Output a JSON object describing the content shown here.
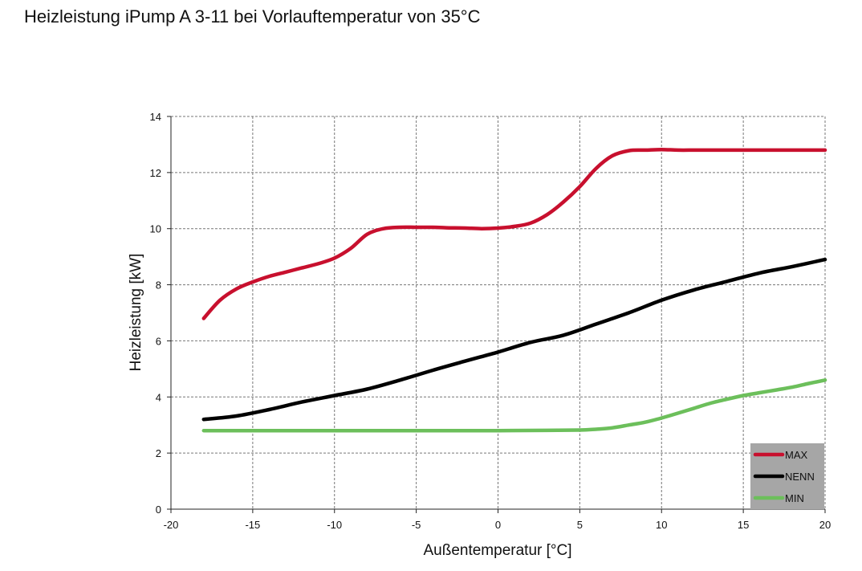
{
  "chart_data": {
    "type": "line",
    "title": "Heizleistung iPump A 3-11 bei Vorlauftemperatur von 35°C",
    "xlabel": "Außentemperatur [°C]",
    "ylabel": "Heizleistung [kW]",
    "xlim": [
      -20,
      20
    ],
    "ylim": [
      0,
      14
    ],
    "xticks": [
      "-20",
      "-15",
      "-10",
      "-5",
      "0",
      "5",
      "10",
      "15",
      "20"
    ],
    "yticks": [
      "0",
      "2",
      "4",
      "6",
      "8",
      "10",
      "12",
      "14"
    ],
    "grid": true,
    "legend_position": "bottom-right",
    "series": [
      {
        "name": "MAX",
        "color": "#c8102e",
        "points": [
          [
            -18,
            6.8
          ],
          [
            -17,
            7.45
          ],
          [
            -16,
            7.85
          ],
          [
            -15,
            8.1
          ],
          [
            -14,
            8.3
          ],
          [
            -13,
            8.45
          ],
          [
            -12,
            8.6
          ],
          [
            -11,
            8.75
          ],
          [
            -10,
            8.95
          ],
          [
            -9,
            9.3
          ],
          [
            -8,
            9.8
          ],
          [
            -7,
            10.0
          ],
          [
            -6,
            10.05
          ],
          [
            -5,
            10.05
          ],
          [
            -4,
            10.05
          ],
          [
            -3,
            10.03
          ],
          [
            -2,
            10.02
          ],
          [
            -1,
            10.0
          ],
          [
            0,
            10.02
          ],
          [
            1,
            10.08
          ],
          [
            2,
            10.2
          ],
          [
            3,
            10.5
          ],
          [
            4,
            10.95
          ],
          [
            5,
            11.5
          ],
          [
            6,
            12.15
          ],
          [
            7,
            12.6
          ],
          [
            8,
            12.78
          ],
          [
            9,
            12.8
          ],
          [
            10,
            12.82
          ],
          [
            11,
            12.8
          ],
          [
            12,
            12.8
          ],
          [
            13,
            12.8
          ],
          [
            14,
            12.8
          ],
          [
            15,
            12.8
          ],
          [
            16,
            12.8
          ],
          [
            17,
            12.8
          ],
          [
            18,
            12.8
          ],
          [
            19,
            12.8
          ],
          [
            20,
            12.8
          ]
        ]
      },
      {
        "name": "NENN",
        "color": "#000000",
        "points": [
          [
            -18,
            3.2
          ],
          [
            -16,
            3.32
          ],
          [
            -14,
            3.55
          ],
          [
            -12,
            3.82
          ],
          [
            -10,
            4.05
          ],
          [
            -8,
            4.28
          ],
          [
            -6,
            4.6
          ],
          [
            -4,
            4.95
          ],
          [
            -2,
            5.28
          ],
          [
            0,
            5.6
          ],
          [
            2,
            5.95
          ],
          [
            4,
            6.2
          ],
          [
            6,
            6.6
          ],
          [
            8,
            7.0
          ],
          [
            10,
            7.45
          ],
          [
            12,
            7.82
          ],
          [
            14,
            8.12
          ],
          [
            16,
            8.42
          ],
          [
            18,
            8.65
          ],
          [
            20,
            8.9
          ]
        ]
      },
      {
        "name": "MIN",
        "color": "#6cbf5b",
        "points": [
          [
            -18,
            2.8
          ],
          [
            -15,
            2.8
          ],
          [
            -10,
            2.8
          ],
          [
            -5,
            2.8
          ],
          [
            0,
            2.8
          ],
          [
            3,
            2.81
          ],
          [
            5,
            2.82
          ],
          [
            6,
            2.85
          ],
          [
            7,
            2.9
          ],
          [
            8,
            3.0
          ],
          [
            9,
            3.1
          ],
          [
            10,
            3.25
          ],
          [
            11,
            3.42
          ],
          [
            12,
            3.6
          ],
          [
            13,
            3.78
          ],
          [
            14,
            3.92
          ],
          [
            15,
            4.05
          ],
          [
            16,
            4.15
          ],
          [
            17,
            4.25
          ],
          [
            18,
            4.35
          ],
          [
            19,
            4.48
          ],
          [
            20,
            4.6
          ]
        ]
      }
    ]
  }
}
